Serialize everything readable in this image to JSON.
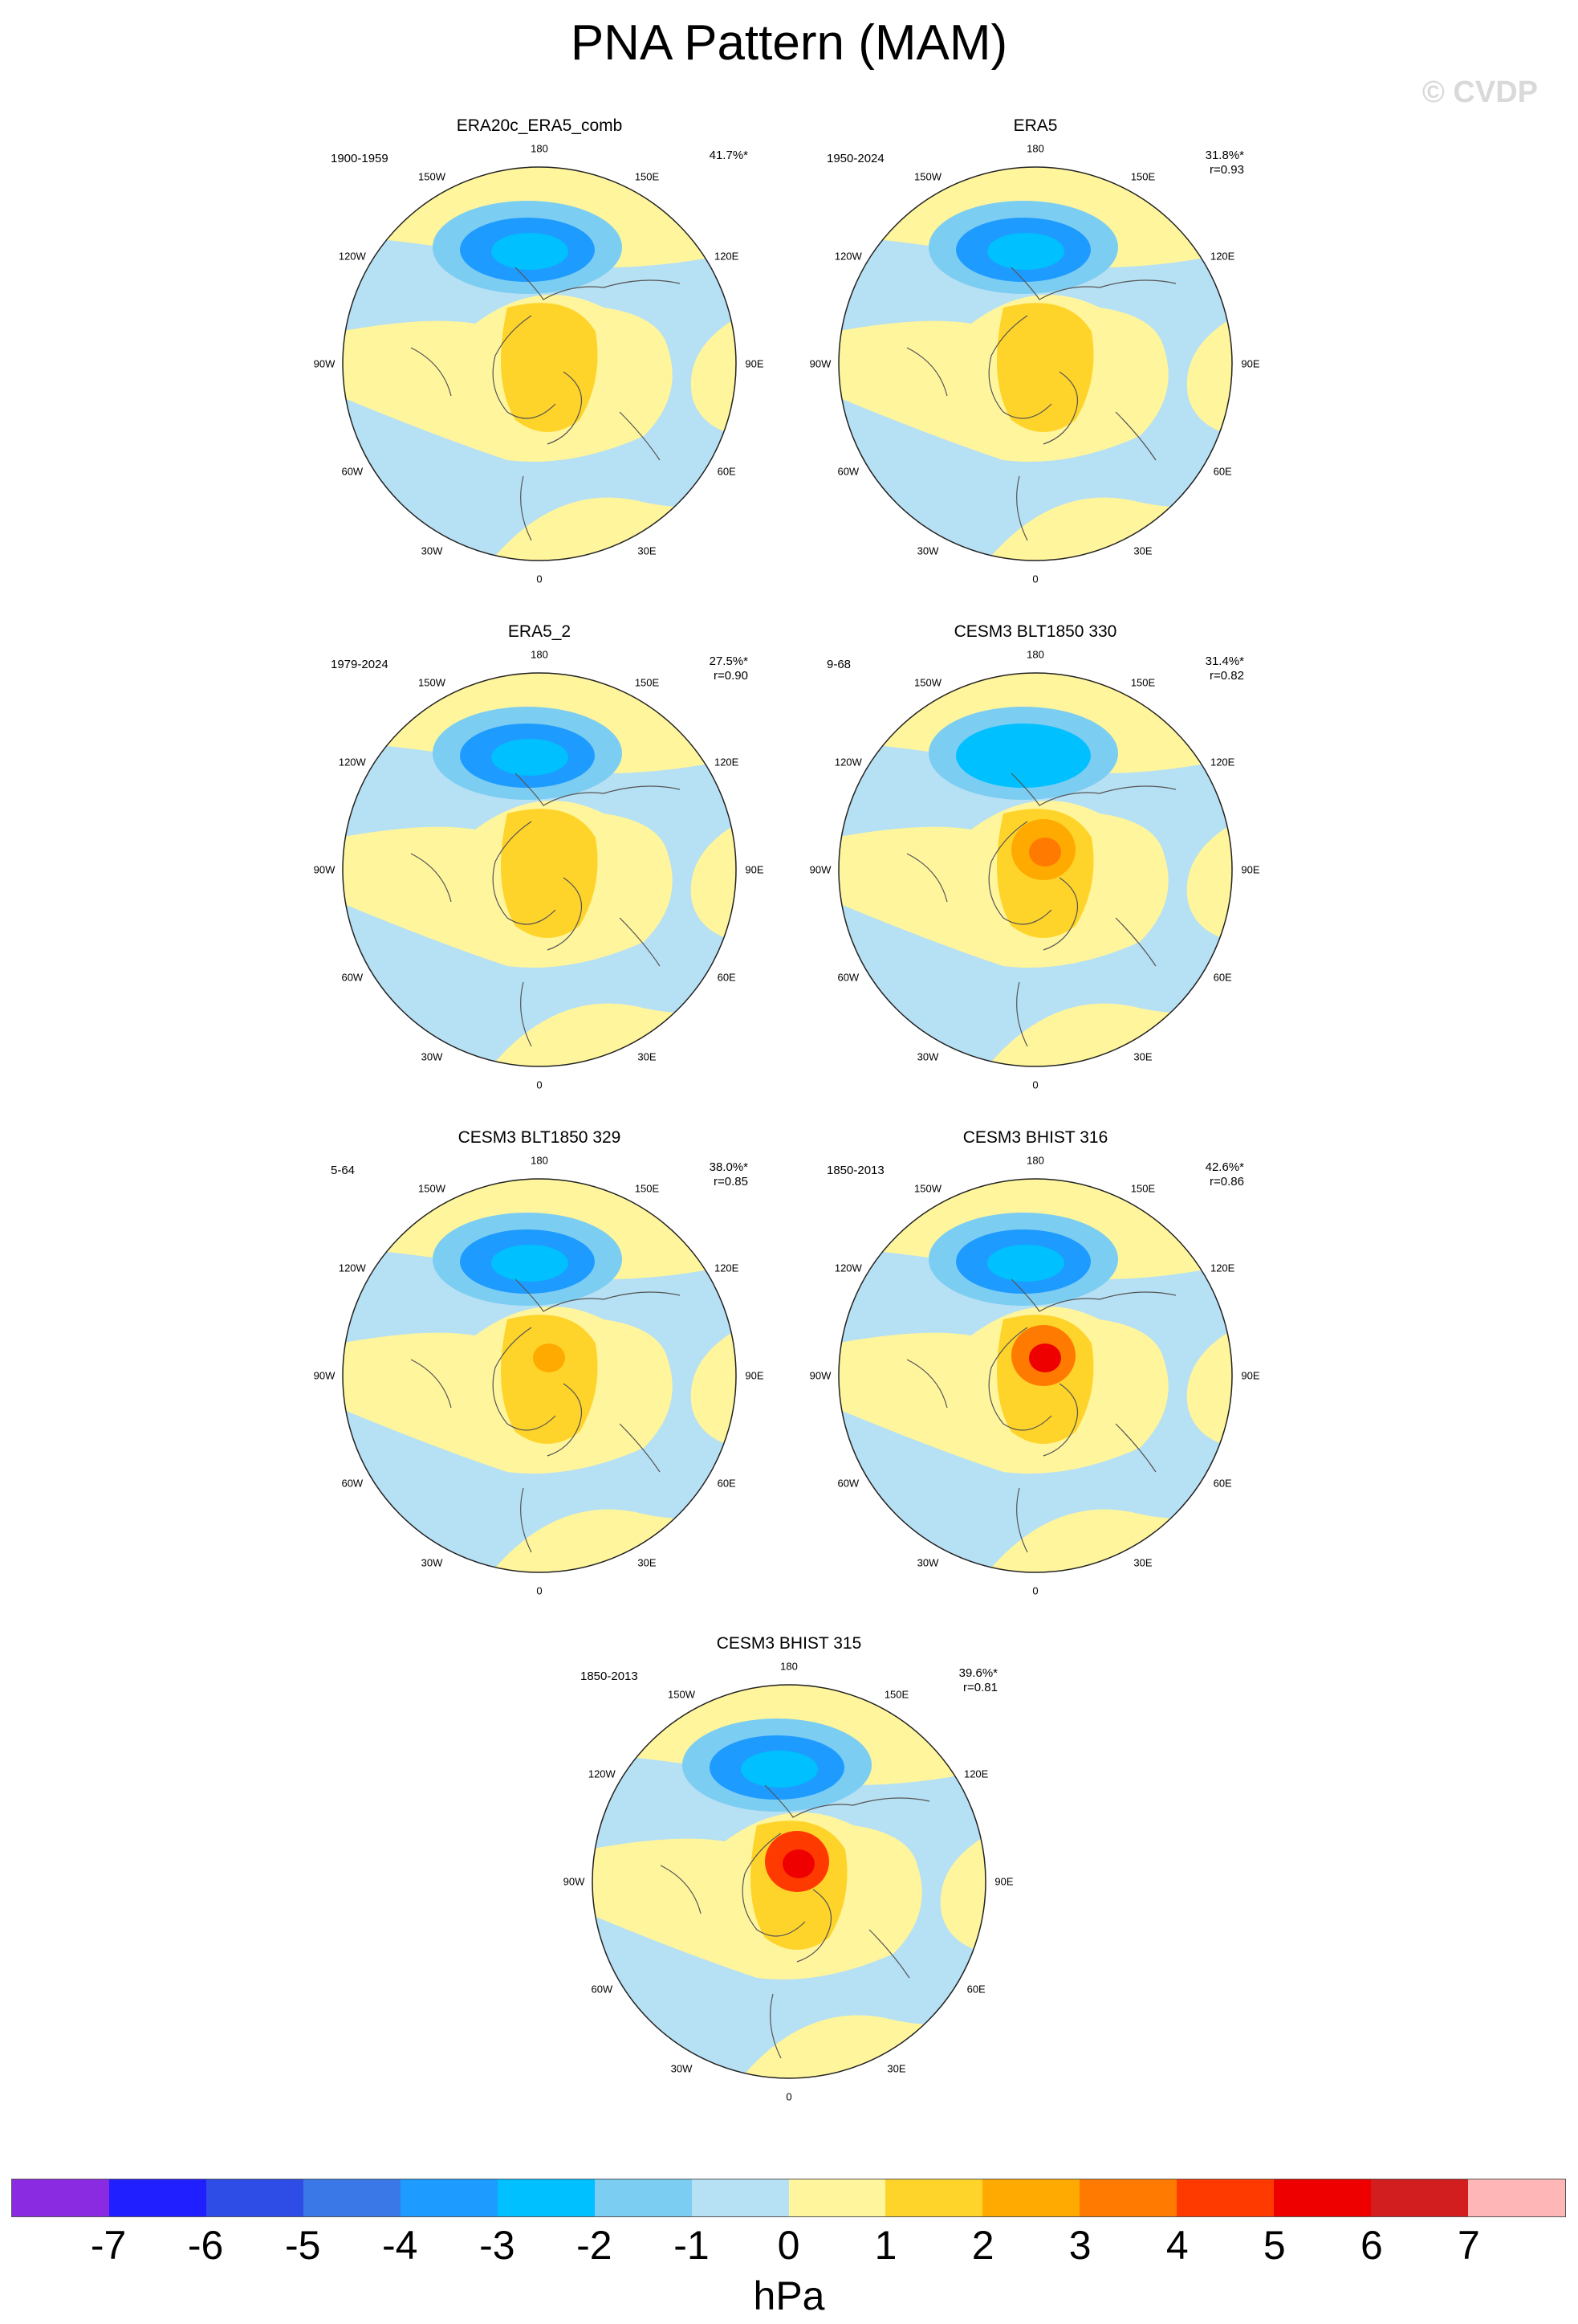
{
  "title": "PNA Pattern (MAM)",
  "watermark": "© CVDP",
  "lon_labels": {
    "n": "180",
    "nne": "150E",
    "nnw": "150W",
    "ene": "120E",
    "wnw": "120W",
    "e": "90E",
    "w": "90W",
    "ese": "60E",
    "wsw": "60W",
    "sse": "30E",
    "ssw": "30W",
    "s": "0"
  },
  "panels": [
    {
      "title": "ERA20c_ERA5_comb",
      "period": "1900-1959",
      "pct": "41.7%*",
      "r": ""
    },
    {
      "title": "ERA5",
      "period": "1950-2024",
      "pct": "31.8%*",
      "r": "r=0.93"
    },
    {
      "title": "ERA5_2",
      "period": "1979-2024",
      "pct": "27.5%*",
      "r": "r=0.90"
    },
    {
      "title": "CESM3 BLT1850 330",
      "period": "9-68",
      "pct": "31.4%*",
      "r": "r=0.82"
    },
    {
      "title": "CESM3 BLT1850 329",
      "period": "5-64",
      "pct": "38.0%*",
      "r": "r=0.85"
    },
    {
      "title": "CESM3 BHIST 316",
      "period": "1850-2013",
      "pct": "42.6%*",
      "r": "r=0.86"
    },
    {
      "title": "CESM3 BHIST 315",
      "period": "1850-2013",
      "pct": "39.6%*",
      "r": "r=0.81"
    }
  ],
  "colorbar": {
    "labels": [
      "-7",
      "-6",
      "-5",
      "-4",
      "-3",
      "-2",
      "-1",
      "0",
      "1",
      "2",
      "3",
      "4",
      "5",
      "6",
      "7"
    ],
    "colors": [
      "#8a2be2",
      "#1f1fff",
      "#2e4ce6",
      "#3a78e8",
      "#1e9bff",
      "#00c0ff",
      "#7ccdf2",
      "#b6e0f3",
      "#fff59d",
      "#ffd42a",
      "#ffaa00",
      "#ff7a00",
      "#ff3a00",
      "#ee0000",
      "#d21e1e",
      "#ffb6b6"
    ],
    "units": "hPa"
  }
}
